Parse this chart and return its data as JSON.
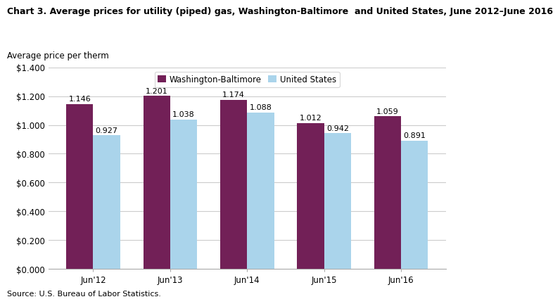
{
  "title": "Chart 3. Average prices for utility (piped) gas, Washington-Baltimore  and United States, June 2012–June 2016",
  "ylabel": "Average price per therm",
  "source": "Source: U.S. Bureau of Labor Statistics.",
  "categories": [
    "Jun'12",
    "Jun'13",
    "Jun'14",
    "Jun'15",
    "Jun'16"
  ],
  "series": [
    {
      "name": "Washington-Baltimore",
      "values": [
        1.146,
        1.201,
        1.174,
        1.012,
        1.059
      ],
      "color": "#722057"
    },
    {
      "name": "United States",
      "values": [
        0.927,
        1.038,
        1.088,
        0.942,
        0.891
      ],
      "color": "#aad4eb"
    }
  ],
  "ylim": [
    0,
    1.4
  ],
  "yticks": [
    0.0,
    0.2,
    0.4,
    0.6,
    0.8,
    1.0,
    1.2,
    1.4
  ],
  "bar_width": 0.35,
  "bg_color": "#ffffff",
  "grid_color": "#cccccc",
  "title_fontsize": 9.0,
  "label_fontsize": 8.5,
  "tick_fontsize": 8.5,
  "annotation_fontsize": 8.0,
  "source_fontsize": 8.0
}
